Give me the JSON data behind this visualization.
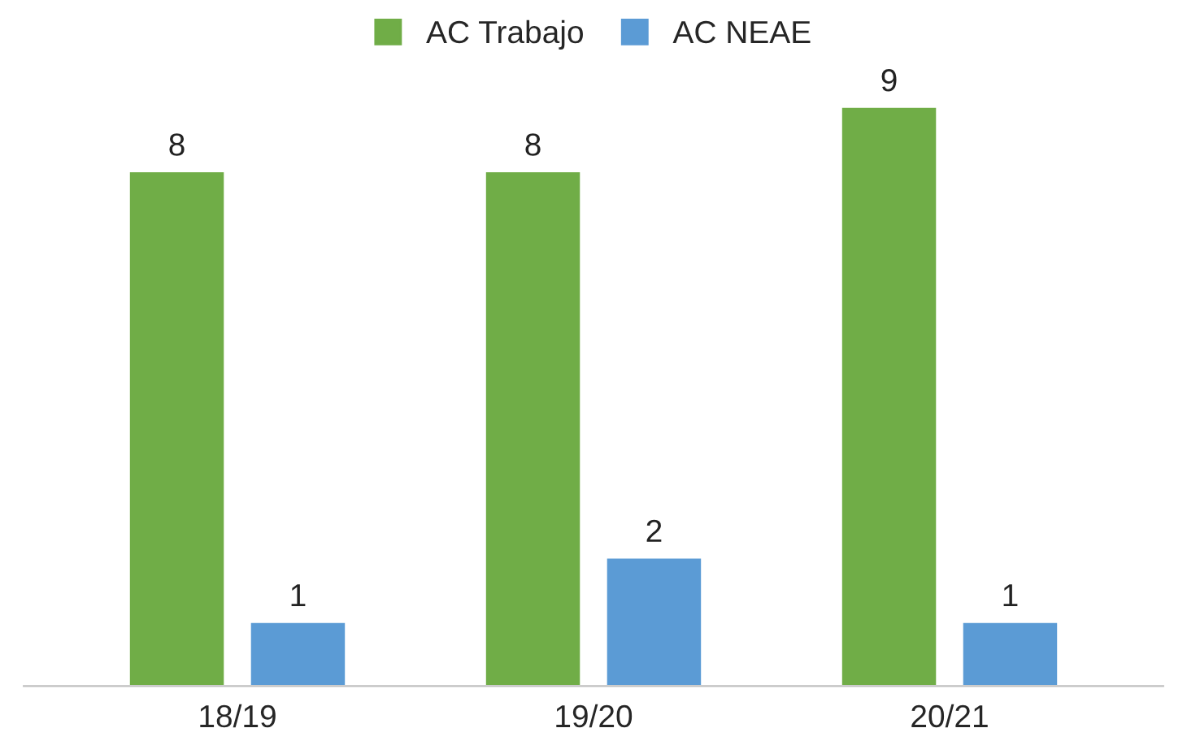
{
  "chart_data": {
    "type": "bar",
    "categories": [
      "18/19",
      "19/20",
      "20/21"
    ],
    "series": [
      {
        "name": "AC Trabajo",
        "color": "#70ad47",
        "values": [
          8,
          8,
          9
        ]
      },
      {
        "name": "AC NEAE",
        "color": "#5b9bd5",
        "values": [
          1,
          2,
          1
        ]
      }
    ],
    "data_labels": true,
    "legend": "top",
    "grid": false
  }
}
